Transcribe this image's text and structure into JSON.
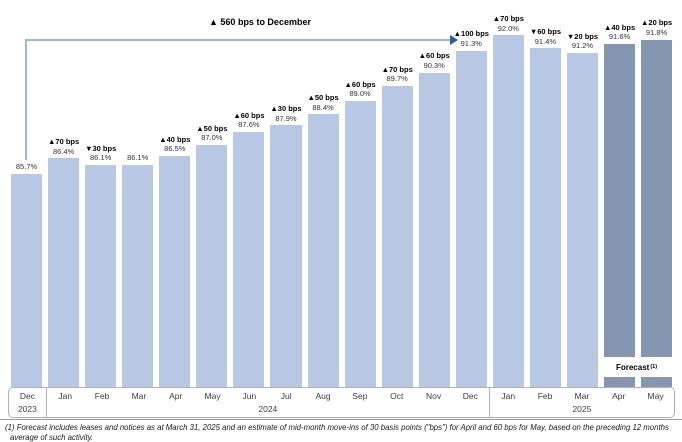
{
  "chart_data": {
    "type": "bar",
    "title": "▲ 560 bps to December",
    "categories": [
      "Dec 2023",
      "Jan 2024",
      "Feb 2024",
      "Mar 2024",
      "Apr 2024",
      "May 2024",
      "Jun 2024",
      "Jul 2024",
      "Aug 2024",
      "Sep 2024",
      "Oct 2024",
      "Nov 2024",
      "Dec 2024",
      "Jan 2025",
      "Feb 2025",
      "Mar 2025",
      "Apr 2025",
      "May 2025"
    ],
    "values": [
      85.7,
      86.4,
      86.1,
      86.1,
      86.5,
      87.0,
      87.6,
      87.9,
      88.4,
      89.0,
      89.7,
      90.3,
      91.3,
      92.0,
      91.4,
      91.2,
      91.6,
      91.8
    ],
    "value_labels": [
      "85.7%",
      "86.4%",
      "86.1%",
      "86.1%",
      "86.5%",
      "87.0%",
      "87.6%",
      "87.9%",
      "88.4%",
      "89.0%",
      "89.7%",
      "90.3%",
      "91.3%",
      "92.0%",
      "91.4%",
      "91.2%",
      "91.6%",
      "91.8%"
    ],
    "bps_labels": [
      "",
      "▲70 bps",
      "▼30 bps",
      "",
      "▲40 bps",
      "▲50 bps",
      "▲60 bps",
      "▲30 bps",
      "▲50 bps",
      "▲60 bps",
      "▲70 bps",
      "▲60 bps",
      "▲100 bps",
      "▲70 bps",
      "▼60 bps",
      "▼20 bps",
      "▲40 bps",
      "▲20 bps"
    ],
    "forecast_flags": [
      false,
      false,
      false,
      false,
      false,
      false,
      false,
      false,
      false,
      false,
      false,
      false,
      false,
      false,
      false,
      false,
      true,
      true
    ],
    "ylim": [
      76,
      93.6
    ],
    "xlabel": "",
    "ylabel": "",
    "grid": false,
    "legend_position": "none",
    "annotation": {
      "label": "▲ 560 bps to December",
      "from_category": "Dec 2023",
      "to_category": "Dec 2024"
    },
    "colors": {
      "bar": "#b6c8e3",
      "forecast_bar": "#8496b0",
      "annotation_line": "#9db8d9",
      "annotation_arrow": "#2d5d9b"
    }
  },
  "axis": {
    "sections": [
      {
        "year": "2023",
        "months": [
          "Dec"
        ],
        "slots": 1
      },
      {
        "year": "2024",
        "months": [
          "Jan",
          "Feb",
          "Mar",
          "Apr",
          "May",
          "Jun",
          "Jul",
          "Aug",
          "Sep",
          "Oct",
          "Nov",
          "Dec"
        ],
        "slots": 12
      },
      {
        "year": "2025",
        "months": [
          "Jan",
          "Feb",
          "Mar",
          "Apr",
          "May"
        ],
        "slots": 5
      }
    ]
  },
  "forecast_band": {
    "label": "Forecast",
    "superscript": "(1)"
  },
  "footnote": {
    "line1": "(1) Forecast includes leases and notices as at March 31, 2025 and an estimate of mid-month move-ins of 30 basis points (\"bps\") for April and 60 bps for May, based on the preceding 12 months",
    "line2": "average of such activity."
  }
}
